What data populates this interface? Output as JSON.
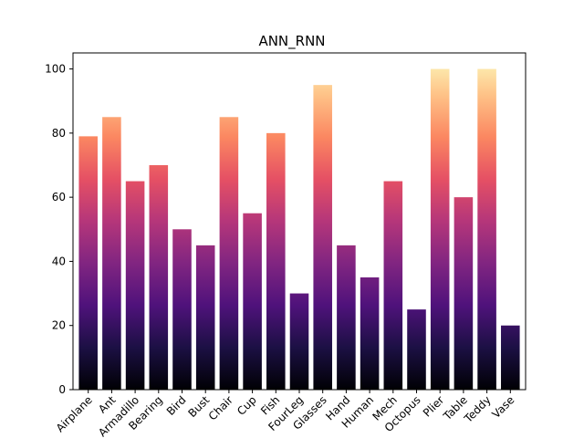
{
  "chart_data": {
    "type": "bar",
    "title": "ANN_RNN",
    "xlabel": "",
    "ylabel": "",
    "categories": [
      "Airplane",
      "Ant",
      "Armadillo",
      "Bearing",
      "Bird",
      "Bust",
      "Chair",
      "Cup",
      "Fish",
      "FourLeg",
      "Glasses",
      "Hand",
      "Human",
      "Mech",
      "Octopus",
      "Plier",
      "Table",
      "Teddy",
      "Vase"
    ],
    "values": [
      79,
      85,
      65,
      70,
      50,
      45,
      85,
      55,
      80,
      30,
      95,
      45,
      35,
      65,
      25,
      100,
      60,
      100,
      20
    ],
    "ylim": [
      0,
      105
    ],
    "yticks": [
      0,
      20,
      40,
      60,
      80,
      100
    ],
    "grid": false,
    "colormap": "magma",
    "colormap_stops": [
      "#000004",
      "#1c1044",
      "#4f127b",
      "#812581",
      "#b5367a",
      "#e55064",
      "#fb8761",
      "#fec287",
      "#fcfdbf"
    ]
  }
}
